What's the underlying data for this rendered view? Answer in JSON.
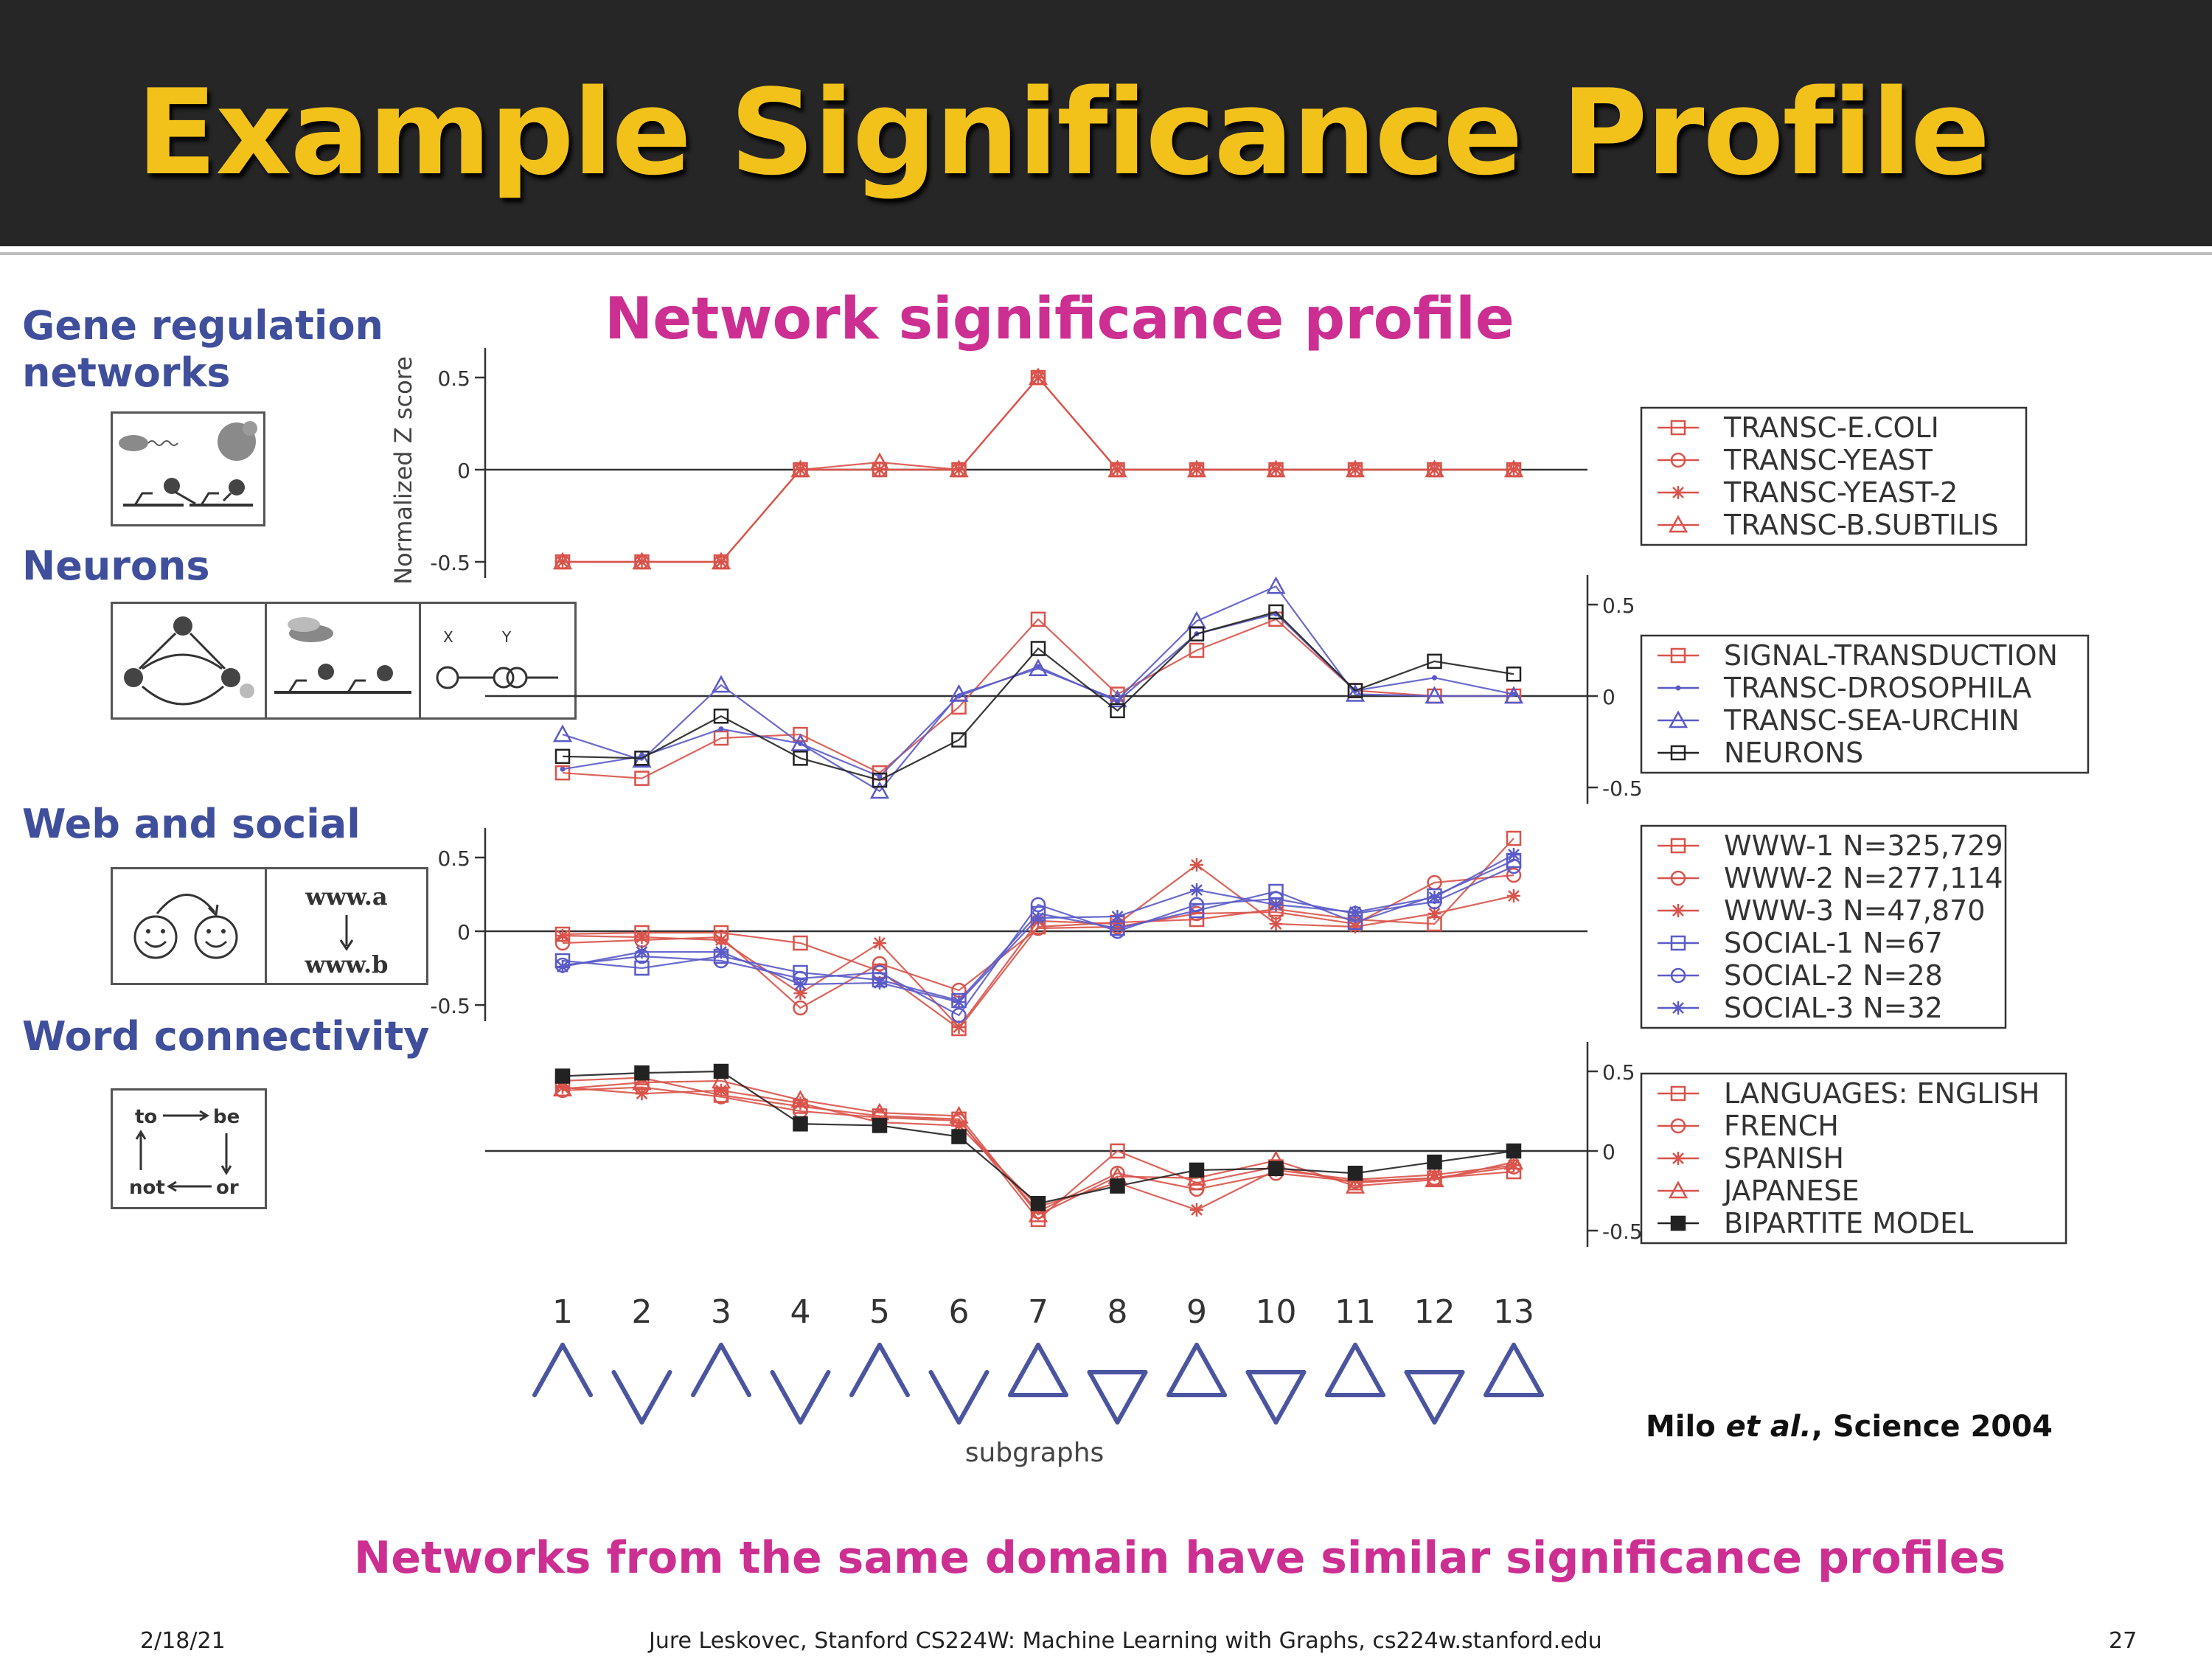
{
  "slide": {
    "title": "Example Significance Profile",
    "chart_title": "Network significance profile",
    "conclusion": "Networks from the same domain have similar significance profiles",
    "citation_prefix": "Milo ",
    "citation_italic": "et al.",
    "citation_suffix": ", Science 2004",
    "footer_date": "2/18/21",
    "footer_credit": "Jure Leskovec, Stanford CS224W: Machine Learning with Graphs, cs224w.stanford.edu",
    "footer_page": "27"
  },
  "side_labels": {
    "gene": [
      "Gene regulation",
      "networks"
    ],
    "neurons": "Neurons",
    "web": "Web and social",
    "word": "Word connectivity"
  },
  "icons": {
    "web_a": "www.a",
    "web_b": "www.b",
    "word_to": "to",
    "word_be": "be",
    "word_not": "not",
    "word_or": "or",
    "neuron_x": "X",
    "neuron_y": "Y"
  },
  "chart_data": {
    "type": "line",
    "ylabel": "Normalized Z score",
    "xlabel": "subgraphs",
    "x": [
      1,
      2,
      3,
      4,
      5,
      6,
      7,
      8,
      9,
      10,
      11,
      12,
      13
    ],
    "colors": {
      "red": "#d9534a",
      "blue": "#5a5ac8",
      "black": "#222222"
    },
    "panels": [
      {
        "id": "gene",
        "ylim": [
          -0.5,
          0.5
        ],
        "ticks": [
          "0.5",
          "0",
          "-0.5"
        ],
        "tick_values": [
          0.5,
          0,
          -0.5
        ],
        "axis_side": "left",
        "legend_placement": "right",
        "series": [
          {
            "name": "TRANSC-E.COLI",
            "color": "red",
            "marker": "square",
            "values": [
              -0.5,
              -0.5,
              -0.5,
              0,
              0,
              0,
              0.5,
              0,
              0,
              0,
              0,
              0,
              0
            ]
          },
          {
            "name": "TRANSC-YEAST",
            "color": "red",
            "marker": "circle",
            "values": [
              -0.5,
              -0.5,
              -0.5,
              0,
              0,
              0,
              0.5,
              0,
              0,
              0,
              0,
              0,
              0
            ]
          },
          {
            "name": "TRANSC-YEAST-2",
            "color": "red",
            "marker": "star",
            "values": [
              -0.5,
              -0.5,
              -0.5,
              0,
              0,
              0,
              0.5,
              0,
              0,
              0,
              0,
              0,
              0
            ]
          },
          {
            "name": "TRANSC-B.SUBTILIS",
            "color": "red",
            "marker": "triangle",
            "values": [
              -0.5,
              -0.5,
              -0.5,
              0,
              0.04,
              0,
              0.5,
              0,
              0,
              0,
              0,
              0,
              0
            ]
          }
        ]
      },
      {
        "id": "neurons",
        "ylim": [
          -0.5,
          0.5
        ],
        "ticks": [
          "0.5",
          "0",
          "-0.5"
        ],
        "tick_values": [
          0.5,
          0,
          -0.5
        ],
        "axis_side": "right",
        "legend_placement": "right",
        "series": [
          {
            "name": "SIGNAL-TRANSDUCTION",
            "color": "red",
            "marker": "square",
            "values": [
              -0.42,
              -0.45,
              -0.23,
              -0.21,
              -0.42,
              -0.06,
              0.42,
              0.01,
              0.25,
              0.42,
              0.03,
              0,
              0
            ]
          },
          {
            "name": "TRANSC-DROSOPHILA",
            "color": "blue",
            "marker": "dot",
            "values": [
              -0.4,
              -0.33,
              -0.18,
              -0.26,
              -0.44,
              0,
              0.16,
              -0.03,
              0.34,
              0.45,
              0.03,
              0.1,
              0.01
            ]
          },
          {
            "name": "TRANSC-SEA-URCHIN",
            "color": "blue",
            "marker": "triangle",
            "values": [
              -0.21,
              -0.35,
              0.06,
              -0.26,
              -0.52,
              0.01,
              0.15,
              -0.02,
              0.41,
              0.6,
              0.01,
              0,
              0
            ]
          },
          {
            "name": "NEURONS",
            "color": "black",
            "marker": "square",
            "values": [
              -0.33,
              -0.34,
              -0.11,
              -0.34,
              -0.46,
              -0.24,
              0.26,
              -0.08,
              0.34,
              0.46,
              0.03,
              0.19,
              0.12
            ]
          }
        ]
      },
      {
        "id": "web",
        "ylim": [
          -0.5,
          0.5
        ],
        "ticks": [
          "0.5",
          "0",
          "-0.5"
        ],
        "tick_values": [
          0.5,
          0,
          -0.5
        ],
        "axis_side": "left",
        "legend_placement": "right",
        "series": [
          {
            "name": "WWW-1 N=325,729",
            "color": "red",
            "marker": "square",
            "values": [
              -0.02,
              -0.01,
              -0.01,
              -0.08,
              -0.27,
              -0.66,
              0.03,
              0.06,
              0.08,
              0.15,
              0.08,
              0.05,
              0.63
            ]
          },
          {
            "name": "WWW-2 N=277,114",
            "color": "red",
            "marker": "circle",
            "values": [
              -0.08,
              -0.06,
              -0.04,
              -0.52,
              -0.22,
              -0.4,
              0.02,
              0.03,
              0.12,
              0.13,
              0.05,
              0.33,
              0.38
            ]
          },
          {
            "name": "WWW-3 N=47,870",
            "color": "red",
            "marker": "star",
            "values": [
              -0.03,
              -0.04,
              -0.06,
              -0.42,
              -0.08,
              -0.65,
              0.07,
              0.05,
              0.45,
              0.05,
              0.03,
              0.12,
              0.24
            ]
          },
          {
            "name": "SOCIAL-1 N=67",
            "color": "blue",
            "marker": "square",
            "values": [
              -0.2,
              -0.25,
              -0.17,
              -0.28,
              -0.33,
              -0.47,
              0.12,
              0.02,
              0.14,
              0.27,
              0.06,
              0.24,
              0.48
            ]
          },
          {
            "name": "SOCIAL-2 N=28",
            "color": "blue",
            "marker": "circle",
            "values": [
              -0.23,
              -0.17,
              -0.2,
              -0.32,
              -0.28,
              -0.57,
              0.18,
              0,
              0.18,
              0.22,
              0.12,
              0.2,
              0.44
            ]
          },
          {
            "name": "SOCIAL-3 N=32",
            "color": "blue",
            "marker": "star",
            "values": [
              -0.24,
              -0.14,
              -0.14,
              -0.36,
              -0.35,
              -0.48,
              0.09,
              0.1,
              0.28,
              0.18,
              0.13,
              0.23,
              0.52
            ]
          }
        ]
      },
      {
        "id": "word",
        "ylim": [
          -0.5,
          0.5
        ],
        "ticks": [
          "0.5",
          "0",
          "-0.5"
        ],
        "tick_values": [
          0.5,
          0,
          -0.5
        ],
        "axis_side": "right",
        "legend_placement": "right",
        "series": [
          {
            "name": "LANGUAGES: ENGLISH",
            "color": "red",
            "marker": "square",
            "values": [
              0.44,
              0.46,
              0.35,
              0.28,
              0.22,
              0.2,
              -0.43,
              0,
              -0.2,
              -0.1,
              -0.2,
              -0.17,
              -0.13
            ]
          },
          {
            "name": "FRENCH",
            "color": "red",
            "marker": "circle",
            "values": [
              0.38,
              0.4,
              0.34,
              0.25,
              0.21,
              0.19,
              -0.38,
              -0.14,
              -0.24,
              -0.14,
              -0.19,
              -0.17,
              -0.1
            ]
          },
          {
            "name": "SPANISH",
            "color": "red",
            "marker": "star",
            "values": [
              0.4,
              0.36,
              0.38,
              0.3,
              0.18,
              0.16,
              -0.35,
              -0.2,
              -0.37,
              -0.12,
              -0.18,
              -0.15,
              -0.09
            ]
          },
          {
            "name": "JAPANESE",
            "color": "red",
            "marker": "triangle",
            "values": [
              0.39,
              0.43,
              0.44,
              0.32,
              0.24,
              0.22,
              -0.4,
              -0.16,
              -0.17,
              -0.06,
              -0.22,
              -0.18,
              -0.07
            ]
          },
          {
            "name": "BIPARTITE MODEL",
            "color": "black",
            "marker": "filled-square",
            "values": [
              0.47,
              0.49,
              0.5,
              0.17,
              0.16,
              0.09,
              -0.33,
              -0.22,
              -0.12,
              -0.11,
              -0.14,
              -0.07,
              0
            ]
          }
        ]
      }
    ]
  }
}
